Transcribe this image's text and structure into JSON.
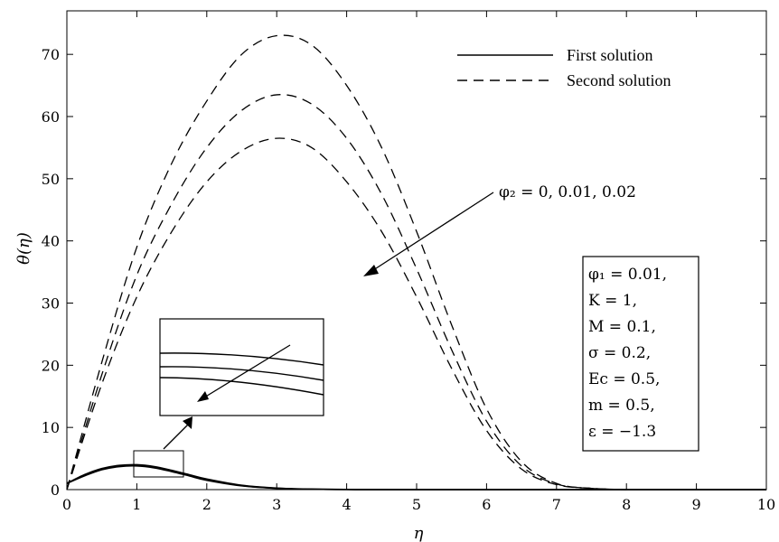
{
  "chart_data": {
    "type": "line",
    "xlabel": "η",
    "ylabel": "θ(η)",
    "xlim": [
      0,
      10
    ],
    "ylim": [
      0,
      77
    ],
    "x_ticks": [
      "0",
      "1",
      "2",
      "3",
      "4",
      "5",
      "6",
      "7",
      "8",
      "9",
      "10"
    ],
    "y_ticks": [
      "0",
      "10",
      "20",
      "30",
      "40",
      "50",
      "60",
      "70"
    ],
    "grid": false,
    "legend_position": "top-right",
    "legend": [
      {
        "label": "First solution",
        "style": "solid"
      },
      {
        "label": "Second solution",
        "style": "dashed"
      }
    ],
    "series": [
      {
        "solution": "second",
        "phi2": "0",
        "style": "dashed",
        "x": [
          0,
          0.5,
          1,
          1.5,
          2,
          2.5,
          3,
          3.5,
          4,
          4.5,
          5,
          5.5,
          6,
          6.5,
          7,
          7.5,
          8
        ],
        "y": [
          0,
          20.5,
          39,
          52.5,
          62.5,
          70,
          73,
          71.5,
          65,
          55,
          41.5,
          26.5,
          13,
          4.5,
          1,
          0.2,
          0
        ]
      },
      {
        "solution": "second",
        "phi2": "0.01",
        "style": "dashed",
        "x": [
          0,
          0.5,
          1,
          1.5,
          2,
          2.5,
          3,
          3.5,
          4,
          4.5,
          5,
          5.5,
          6,
          6.5,
          7,
          7.5,
          8
        ],
        "y": [
          0,
          18.5,
          34.5,
          46,
          55,
          61,
          63.5,
          62,
          56.5,
          47.5,
          35.5,
          22.5,
          11,
          3.8,
          0.9,
          0.2,
          0
        ]
      },
      {
        "solution": "second",
        "phi2": "0.02",
        "style": "dashed",
        "x": [
          0,
          0.5,
          1,
          1.5,
          2,
          2.5,
          3,
          3.5,
          4,
          4.5,
          5,
          5.5,
          6,
          6.5,
          7,
          7.5,
          8
        ],
        "y": [
          0,
          17,
          31,
          41.5,
          49.5,
          54.5,
          56.5,
          55,
          49.5,
          41.5,
          31,
          19.5,
          9.5,
          3.3,
          0.8,
          0.2,
          0
        ]
      },
      {
        "solution": "first",
        "phi2": "0",
        "style": "solid",
        "x": [
          0,
          0.25,
          0.5,
          0.75,
          1,
          1.25,
          1.5,
          1.75,
          2,
          2.5,
          3,
          3.5,
          4,
          5,
          10
        ],
        "y": [
          1.0,
          2.4,
          3.4,
          3.9,
          4.0,
          3.7,
          3.1,
          2.4,
          1.7,
          0.7,
          0.25,
          0.08,
          0.02,
          0,
          0
        ]
      },
      {
        "solution": "first",
        "phi2": "0.01",
        "style": "solid",
        "x": [
          0,
          0.25,
          0.5,
          0.75,
          1,
          1.25,
          1.5,
          1.75,
          2,
          2.5,
          3,
          3.5,
          4,
          5,
          10
        ],
        "y": [
          1.0,
          2.3,
          3.3,
          3.8,
          3.9,
          3.6,
          3.0,
          2.3,
          1.6,
          0.65,
          0.22,
          0.07,
          0.02,
          0,
          0
        ]
      },
      {
        "solution": "first",
        "phi2": "0.02",
        "style": "solid",
        "x": [
          0,
          0.25,
          0.5,
          0.75,
          1,
          1.25,
          1.5,
          1.75,
          2,
          2.5,
          3,
          3.5,
          4,
          5,
          10
        ],
        "y": [
          1.0,
          2.2,
          3.2,
          3.7,
          3.8,
          3.5,
          2.9,
          2.2,
          1.5,
          0.6,
          0.2,
          0.06,
          0.02,
          0,
          0
        ]
      }
    ],
    "annotations": {
      "phi2_label": "φ₂ = 0, 0.01, 0.02",
      "parameters": [
        "φ₁ = 0.01,",
        "K = 1,",
        "M = 0.1,",
        "σ = 0.2,",
        "Ec = 0.5,",
        "m = 0.5,",
        "ε = −1.3"
      ]
    }
  }
}
